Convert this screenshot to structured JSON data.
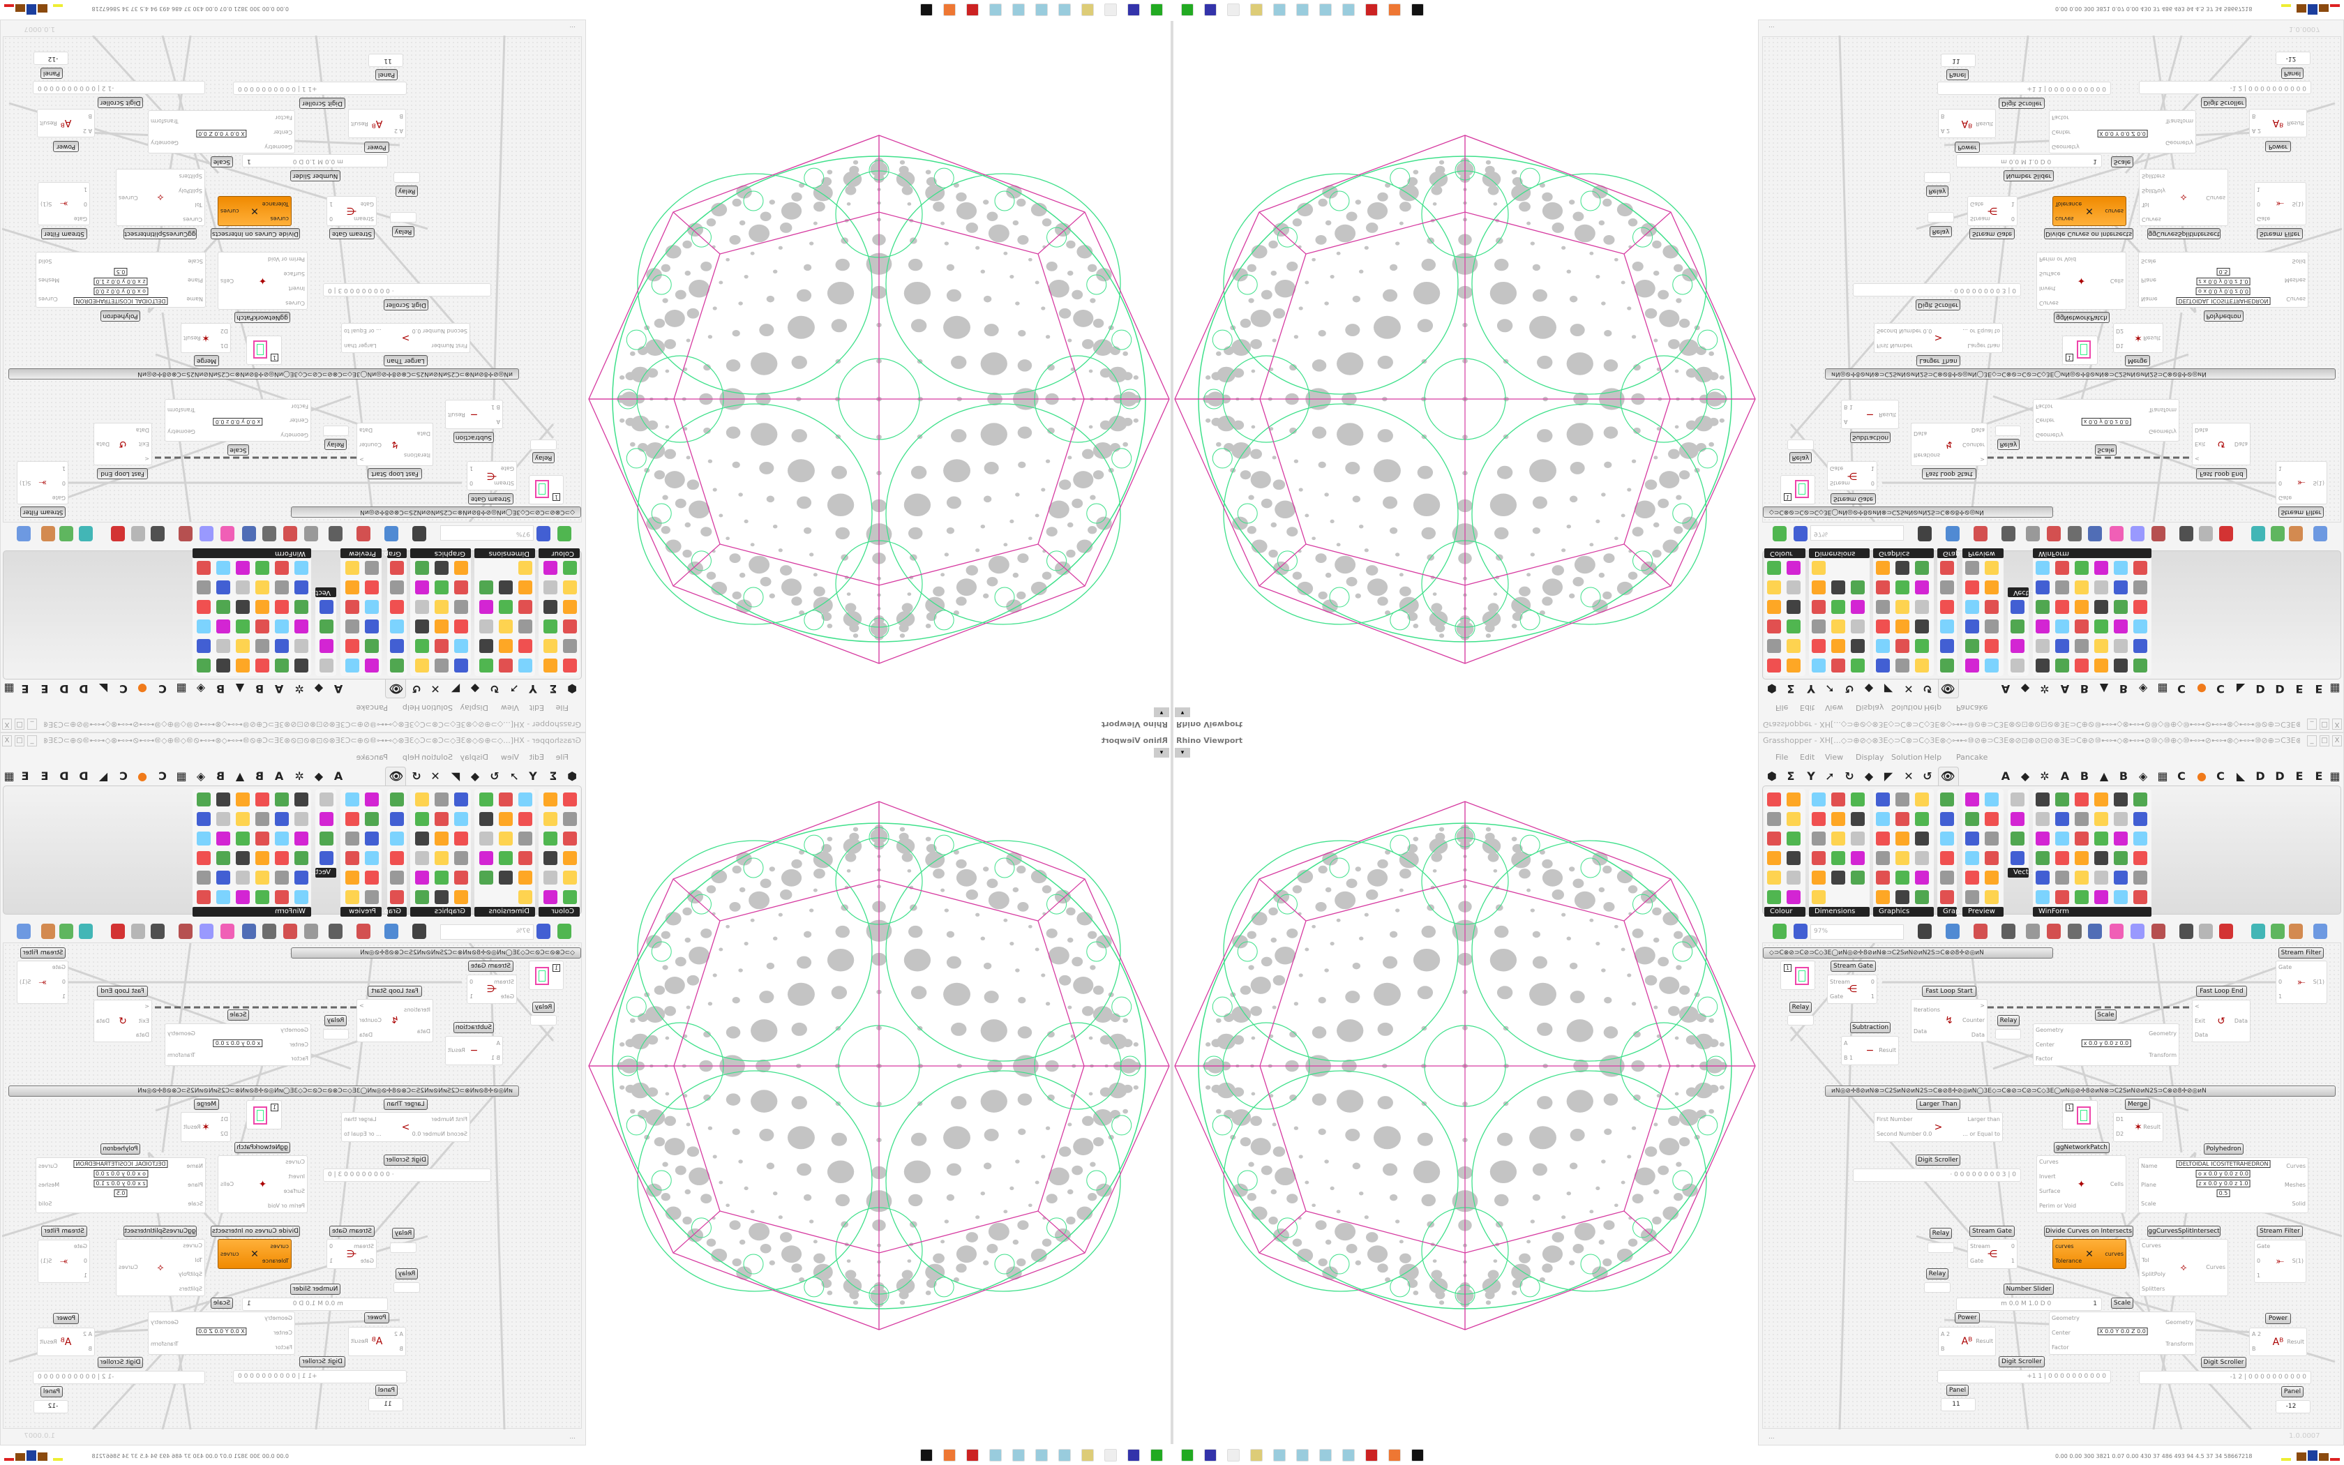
{
  "viewport": {
    "label": "Rhino Viewport",
    "button": "▾"
  },
  "gh": {
    "title": "Grasshopper - XH[...◇⊃⊕⊘◇⊗3E◇⊃C⊗⊃C◇3E⊗◇⊶⊷⑩⊘⊕⊃C3E⊗⊘⊡⊗⊘⊡⊘⊗3E⊃C⊕⊘⑩⊷⊶◇⊗⊷⊶⊘⑩◇⑩⊕◇⑩⊷⊶⊘⊷⊶⊗◇⊷⊶⑩⊘⊕⊃C3E⊗⊘⊡...",
    "window_buttons": [
      "_",
      "□",
      "X"
    ],
    "menu": [
      "File",
      "Edit",
      "View",
      "Display",
      "Solution",
      "Help",
      "Pancake"
    ],
    "tabs": [
      "⬢",
      "Σ",
      "Y",
      "➚",
      "↻",
      "◆",
      "◤",
      "✕",
      "↺",
      "👁",
      "A",
      "◆",
      "✲",
      "A",
      "B",
      "▲",
      "B",
      "◈",
      "▦",
      "C",
      "●",
      "C",
      "◣",
      "D",
      "D",
      "E",
      "E",
      "▦"
    ],
    "palette_groups": [
      "Colour",
      "Dimensions",
      "Graphics",
      "Grap..",
      "Preview",
      "Vect..",
      "WinForm"
    ],
    "zoom": "97%",
    "toolbar_icons": [
      "new-document",
      "save",
      "zoom-extents",
      "preview-eye",
      "sketch",
      "bake",
      "email",
      "gha",
      "image",
      "search",
      "package",
      "bulb",
      "wires",
      "sphere",
      "cylinder",
      "cube",
      "loft",
      "sweep",
      "split-sphere",
      "blob"
    ],
    "status_left": "...",
    "version": "1.0.0007"
  },
  "canvas": {
    "group_bar_1": "◇⊃C⊗⊘⊃C⊘⊃C◇3E◯иN◎⊘✢8⊘иN⊗⊃C2SиN⊘иN2S⊃C⊗⊘8✢⊘◎иN",
    "group_bar_2": "иN◎⊘✢8⊘иN⊗⊃C2SиN⊘иN2S⊃C⊗⊘8✢⊘◎иN◯3E◇⊃C⊗⊘⊃C⊘⊃C◇3E◯иN◎⊘✢8⊘иN⊗⊃C2SиN⊘иN2S⊃C⊗⊘8✢⊘◎иN",
    "nodes": [
      {
        "title": "Stream Filter",
        "inputs": [
          "Gate",
          "0",
          "1"
        ],
        "outputs": [
          "S(1)"
        ],
        "icon": "⤜"
      },
      {
        "kind": "swatch",
        "value": "1"
      },
      {
        "title": "Stream Gate",
        "inputs": [
          "Stream",
          "Gate"
        ],
        "outputs": [
          "0",
          "1"
        ],
        "icon": "⋲"
      },
      {
        "title": "Relay",
        "kind": "relay"
      },
      {
        "title": "Fast Loop Start",
        "inputs": [
          "Iterations",
          "Data"
        ],
        "outputs": [
          ">",
          "Counter",
          "Data"
        ],
        "icon": "↯"
      },
      {
        "title": "Fast Loop End",
        "inputs": [
          "<",
          "Exit",
          "Data"
        ],
        "outputs": [
          "Data"
        ],
        "icon": "↺"
      },
      {
        "title": "Relay",
        "kind": "relay"
      },
      {
        "title": "Scale",
        "inputs": [
          "Geometry",
          "Center",
          "Factor"
        ],
        "outputs": [
          "Geometry",
          "Transform"
        ],
        "fields": [
          "x 0.0  y 0.0  z 0.0"
        ]
      },
      {
        "title": "Subtraction",
        "inputs": [
          "A",
          "B 1"
        ],
        "outputs": [
          "Result"
        ],
        "icon": "−"
      },
      {
        "title": "Larger Than",
        "inputs": [
          "First Number",
          "Second Number 0.0"
        ],
        "outputs": [
          "Larger than",
          "... or Equal to"
        ],
        "icon": ">"
      },
      {
        "kind": "swatch",
        "value": "1"
      },
      {
        "title": "Merge",
        "inputs": [
          "D1",
          "D2"
        ],
        "outputs": [
          "Result"
        ],
        "icon": "✶"
      },
      {
        "title": "ggNetworkPatch",
        "inputs": [
          "Curves",
          "Invert",
          "Surface",
          "Perim or Void"
        ],
        "outputs": [
          "Cells"
        ],
        "icon": "✦"
      },
      {
        "title": "Polyhedron",
        "inputs": [
          "Name",
          "Plane",
          "Scale"
        ],
        "outputs": [
          "Curves",
          "Meshes",
          "Solid"
        ],
        "fields": [
          "DELTOIDAL ICOSITETRAHEDRON",
          "o x 0.0 y 0.0 z 0.0",
          "z x 0.0 y 0.0 z 1.0",
          "0.5"
        ]
      },
      {
        "title": "Digit Scroller",
        "kind": "scroller",
        "value": "· 0 0 0 0 0 0 0 0 3 | 0"
      },
      {
        "title": "Relay",
        "kind": "relay"
      },
      {
        "title": "Stream Gate",
        "inputs": [
          "Stream",
          "Gate"
        ],
        "outputs": [
          "0",
          "1"
        ],
        "icon": "⋲"
      },
      {
        "title": "Divide Curves on Intersects",
        "inputs": [
          "curves",
          "Tolerance"
        ],
        "outputs": [
          "curves"
        ],
        "icon": "✕",
        "orange": true
      },
      {
        "title": "ggCurvesSplitIntersect",
        "inputs": [
          "Curves",
          "Tol",
          "SplitPoly",
          "Splitters"
        ],
        "outputs": [
          "Curves"
        ],
        "icon": "⟡"
      },
      {
        "title": "Stream Filter",
        "inputs": [
          "Gate",
          "0",
          "1"
        ],
        "outputs": [
          "S(1)"
        ],
        "icon": "⤜"
      },
      {
        "title": "Relay",
        "kind": "relay"
      },
      {
        "title": "Number Slider",
        "kind": "slider",
        "value": "m 0.0  M 1.0  D 0",
        "slider_value": "1"
      },
      {
        "title": "Scale",
        "inputs": [
          "Geometry",
          "Center",
          "Factor"
        ],
        "outputs": [
          "Geometry",
          "Transform"
        ],
        "fields": [
          "X 0.0  Y 0.0  Z 0.0"
        ]
      },
      {
        "title": "Power",
        "inputs": [
          "A 2",
          "B"
        ],
        "outputs": [
          "Result"
        ],
        "icon": "Aᴮ"
      },
      {
        "title": "Power",
        "inputs": [
          "A 2",
          "B"
        ],
        "outputs": [
          "Result"
        ],
        "icon": "Aᴮ"
      },
      {
        "title": "Digit Scroller",
        "kind": "scroller",
        "value": "+1 1 | 0 0 0 0 0 0 0 0 0 0"
      },
      {
        "title": "Digit Scroller",
        "kind": "scroller",
        "value": "-1 2 | 0 0 0 0 0 0 0 0 0 0"
      },
      {
        "title": "Panel",
        "kind": "panel",
        "value": "11"
      },
      {
        "title": "Panel",
        "kind": "panel",
        "value": "-12"
      }
    ]
  },
  "taskbar": {
    "stats": "0.00 0.00 300 3821 0.07 0.00 430 37 486 493 94 4.5 37 34 58667218",
    "icons": [
      "rhino-launcher",
      "save-64",
      "blank",
      "folder",
      "notepad",
      "notepad",
      "notepad",
      "notepad",
      "red-app",
      "firefox",
      "inkscape"
    ]
  },
  "colors": {
    "octagon": "#d63aa0",
    "circles": "#3ee08a",
    "dots": "#c4c4c4",
    "orange_node": "#f39a1e"
  }
}
